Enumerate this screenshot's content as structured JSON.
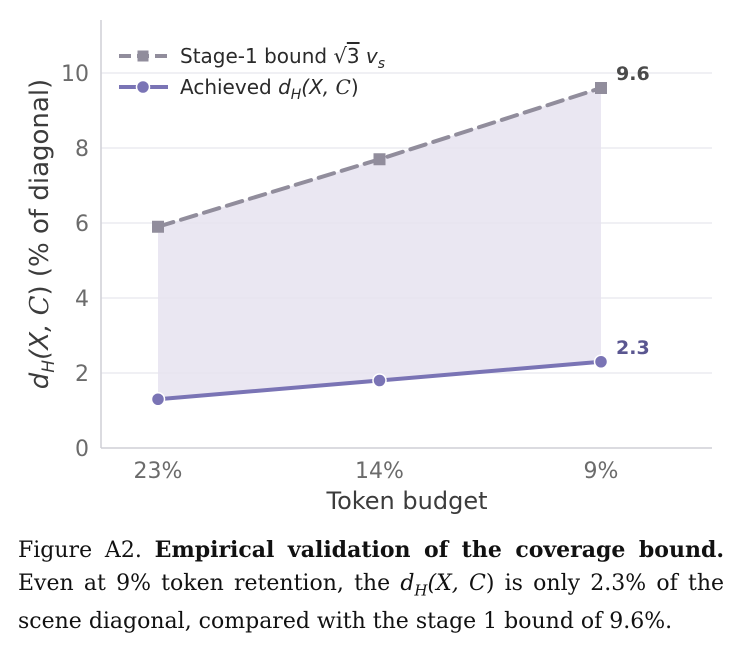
{
  "chart_data": {
    "type": "line",
    "categories": [
      "23%",
      "14%",
      "9%"
    ],
    "xlabel": "Token budget",
    "ylabel_parts": [
      "d",
      "H",
      "(X, ",
      "C",
      ")  (% of diagonal)"
    ],
    "ylim": [
      0,
      11.5
    ],
    "yticks": [
      0,
      2,
      4,
      6,
      8,
      10
    ],
    "grid": "horizontal",
    "legend_position": "top-left",
    "shaded_region": "between series",
    "colors": {
      "bound": "#918d9c",
      "achieved": "#7a74b5",
      "fill": "#e6e3f0",
      "grid": "#ececf1"
    },
    "series": [
      {
        "key": "bound",
        "legend_parts": [
          "Stage-1 bound  ",
          "√",
          "3",
          " v",
          "s"
        ],
        "values": [
          5.9,
          7.7,
          9.6
        ],
        "style": "dashed",
        "marker": "square",
        "end_label": "9.6"
      },
      {
        "key": "achieved",
        "legend_parts": [
          "Achieved  ",
          "d",
          "H",
          "(X, ",
          "C",
          ")"
        ],
        "values": [
          1.3,
          1.8,
          2.3
        ],
        "style": "solid",
        "marker": "circle",
        "end_label": "2.3"
      }
    ]
  },
  "caption": {
    "prefix": "Figure A2. ",
    "bold": "Empirical validation of the coverage bound.",
    "p1": " Even at 9% token retention, the ",
    "d": "d",
    "sub": "H",
    "args": "(X, ",
    "set": "C",
    "close": ")",
    "p2": " is only 2.3% of the scene diagonal, compared with the stage 1 bound of 9.6%."
  }
}
